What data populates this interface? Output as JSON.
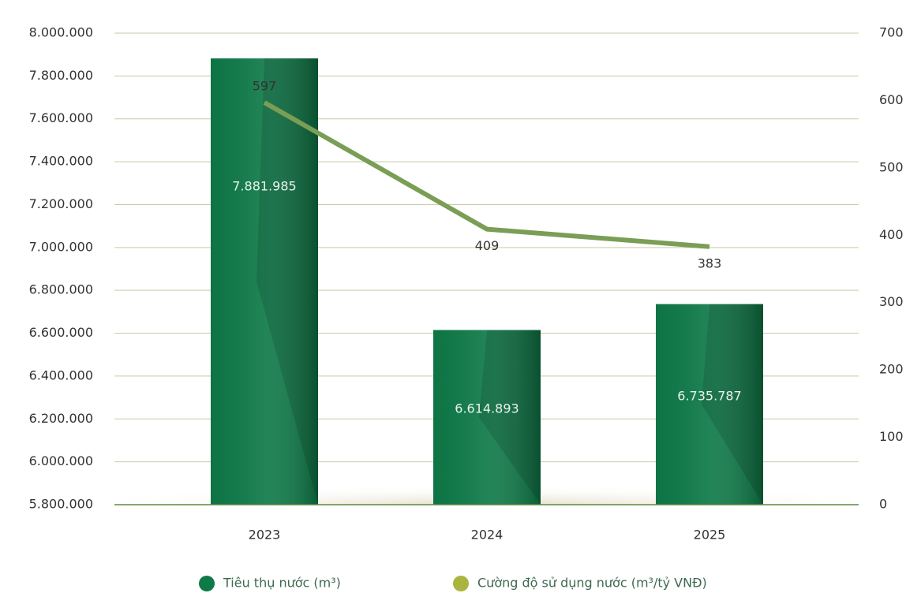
{
  "chart_data": {
    "type": "bar-line",
    "categories": [
      "2023",
      "2024",
      "2025"
    ],
    "series": [
      {
        "name": "Tiêu thụ nước (m³)",
        "color": "#0e7a48",
        "type": "bar",
        "values": [
          7881985,
          6614893,
          6735787
        ],
        "value_labels": [
          "7.881.985",
          "6.614.893",
          "6.735.787"
        ]
      },
      {
        "name": "Cường độ sử dụng nước (m³/tỷ VNĐ)",
        "color": "#7a9e55",
        "legend_color": "#a9b53d",
        "type": "line",
        "axis": "y2",
        "values": [
          597,
          409,
          383
        ]
      }
    ],
    "ylim": [
      5800000,
      8000000
    ],
    "yticks": [
      {
        "value": 5800000,
        "label": "5.800.000"
      },
      {
        "value": 6000000,
        "label": "6.000.000"
      },
      {
        "value": 6200000,
        "label": "6.200.000"
      },
      {
        "value": 6400000,
        "label": "6.400.000"
      },
      {
        "value": 6600000,
        "label": "6.600.000"
      },
      {
        "value": 6800000,
        "label": "6.800.000"
      },
      {
        "value": 7000000,
        "label": "7.000.000"
      },
      {
        "value": 7200000,
        "label": "7.200.000"
      },
      {
        "value": 7400000,
        "label": "7.400.000"
      },
      {
        "value": 7600000,
        "label": "7.600.000"
      },
      {
        "value": 7800000,
        "label": "7.800.000"
      },
      {
        "value": 8000000,
        "label": "8.000.000"
      }
    ],
    "y2lim": [
      0,
      700
    ],
    "y2ticks": [
      0,
      100,
      200,
      300,
      400,
      500,
      600,
      700
    ],
    "grid": true
  }
}
